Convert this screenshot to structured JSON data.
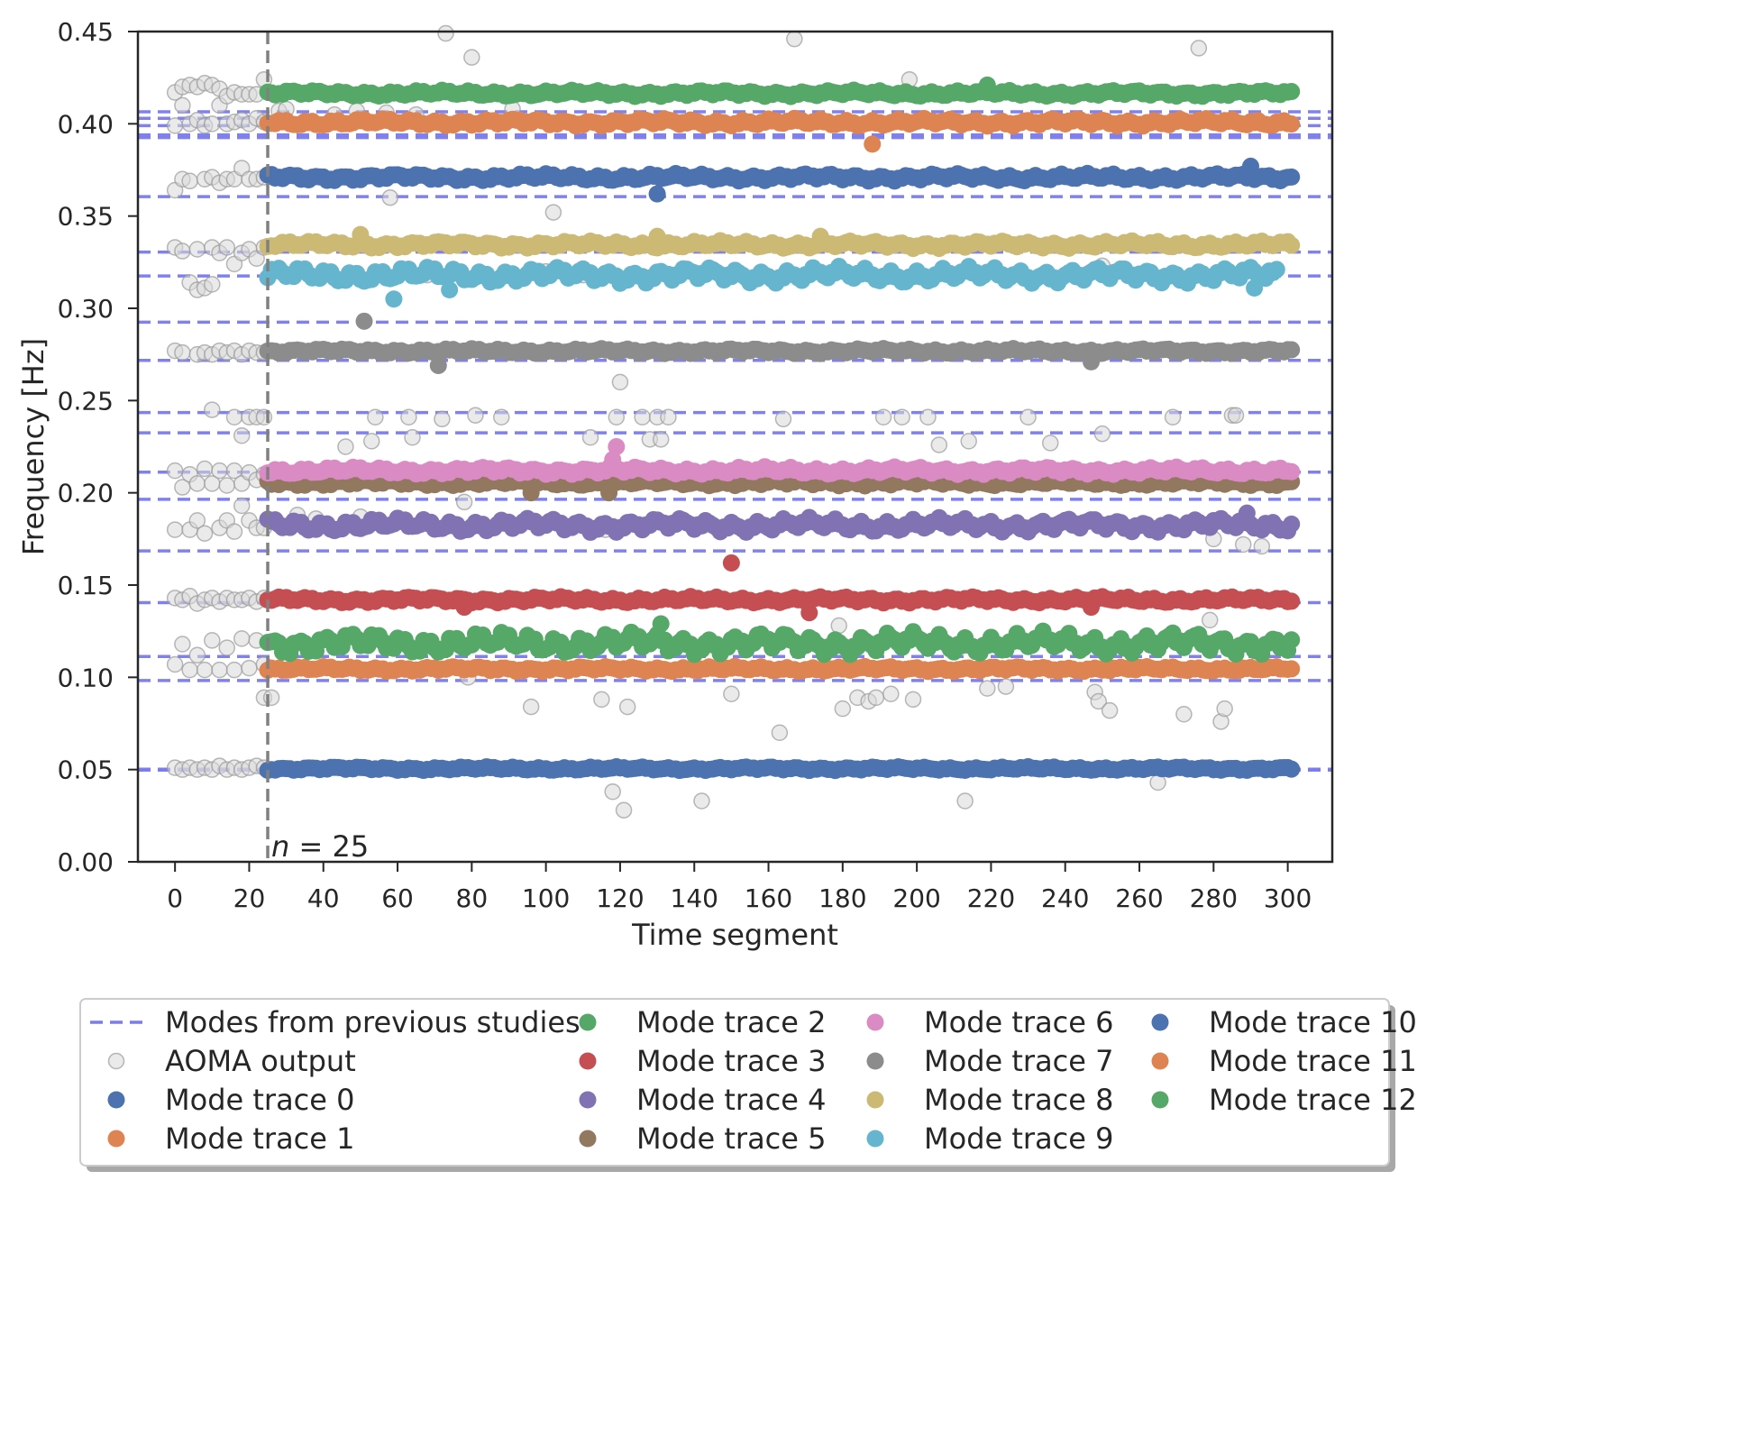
{
  "chart_data": {
    "type": "scatter",
    "title": "",
    "xlabel": "Time segment",
    "ylabel": "Frequency [Hz]",
    "xlim": [
      -10,
      312
    ],
    "ylim": [
      0.0,
      0.45
    ],
    "xticks": [
      0,
      20,
      40,
      60,
      80,
      100,
      120,
      140,
      160,
      180,
      200,
      220,
      240,
      260,
      280,
      300
    ],
    "yticks": [
      0.0,
      0.05,
      0.1,
      0.15,
      0.2,
      0.25,
      0.3,
      0.35,
      0.4,
      0.45
    ],
    "ytick_labels": [
      "0.00",
      "0.05",
      "0.10",
      "0.15",
      "0.20",
      "0.25",
      "0.30",
      "0.35",
      "0.40",
      "0.45"
    ],
    "grid": false,
    "legend_position": "below plot, 4 columns",
    "vertical_line": {
      "x": 25,
      "label": "n = 25",
      "label_italic": "n",
      "label_rest": " = 25",
      "color": "#808080"
    },
    "reference_modes": {
      "name": "Modes from previous studies",
      "color": "#7b7bee",
      "y": [
        0.0497,
        0.0502,
        0.0983,
        0.1113,
        0.1405,
        0.1685,
        0.1965,
        0.2112,
        0.2325,
        0.2435,
        0.2718,
        0.2925,
        0.3175,
        0.3305,
        0.3605,
        0.3925,
        0.394,
        0.399,
        0.403,
        0.4065
      ]
    },
    "aoma_output": {
      "name": "AOMA output",
      "color": "#c8c8c8",
      "points": [
        [
          0,
          0.051
        ],
        [
          0,
          0.107
        ],
        [
          0,
          0.143
        ],
        [
          0,
          0.18
        ],
        [
          0,
          0.212
        ],
        [
          0,
          0.277
        ],
        [
          0,
          0.333
        ],
        [
          0,
          0.364
        ],
        [
          0,
          0.399
        ],
        [
          0,
          0.417
        ],
        [
          2,
          0.05
        ],
        [
          2,
          0.118
        ],
        [
          2,
          0.142
        ],
        [
          2,
          0.203
        ],
        [
          2,
          0.276
        ],
        [
          2,
          0.331
        ],
        [
          2,
          0.37
        ],
        [
          2,
          0.41
        ],
        [
          2,
          0.42
        ],
        [
          4,
          0.051
        ],
        [
          4,
          0.104
        ],
        [
          4,
          0.144
        ],
        [
          4,
          0.18
        ],
        [
          4,
          0.21
        ],
        [
          4,
          0.314
        ],
        [
          4,
          0.369
        ],
        [
          4,
          0.4
        ],
        [
          4,
          0.421
        ],
        [
          6,
          0.05
        ],
        [
          6,
          0.112
        ],
        [
          6,
          0.14
        ],
        [
          6,
          0.185
        ],
        [
          6,
          0.205
        ],
        [
          6,
          0.275
        ],
        [
          6,
          0.332
        ],
        [
          6,
          0.31
        ],
        [
          6,
          0.402
        ],
        [
          6,
          0.42
        ],
        [
          8,
          0.051
        ],
        [
          8,
          0.104
        ],
        [
          8,
          0.142
        ],
        [
          8,
          0.178
        ],
        [
          8,
          0.213
        ],
        [
          8,
          0.276
        ],
        [
          8,
          0.311
        ],
        [
          8,
          0.37
        ],
        [
          8,
          0.399
        ],
        [
          8,
          0.422
        ],
        [
          10,
          0.05
        ],
        [
          10,
          0.12
        ],
        [
          10,
          0.143
        ],
        [
          10,
          0.205
        ],
        [
          10,
          0.245
        ],
        [
          10,
          0.275
        ],
        [
          10,
          0.333
        ],
        [
          10,
          0.313
        ],
        [
          10,
          0.371
        ],
        [
          10,
          0.4
        ],
        [
          10,
          0.421
        ],
        [
          12,
          0.052
        ],
        [
          12,
          0.104
        ],
        [
          12,
          0.141
        ],
        [
          12,
          0.181
        ],
        [
          12,
          0.212
        ],
        [
          12,
          0.277
        ],
        [
          12,
          0.33
        ],
        [
          12,
          0.368
        ],
        [
          12,
          0.41
        ],
        [
          12,
          0.419
        ],
        [
          14,
          0.05
        ],
        [
          14,
          0.116
        ],
        [
          14,
          0.143
        ],
        [
          14,
          0.185
        ],
        [
          14,
          0.204
        ],
        [
          14,
          0.276
        ],
        [
          14,
          0.333
        ],
        [
          14,
          0.37
        ],
        [
          14,
          0.4
        ],
        [
          14,
          0.415
        ],
        [
          16,
          0.051
        ],
        [
          16,
          0.104
        ],
        [
          16,
          0.142
        ],
        [
          16,
          0.179
        ],
        [
          16,
          0.212
        ],
        [
          16,
          0.241
        ],
        [
          16,
          0.277
        ],
        [
          16,
          0.324
        ],
        [
          16,
          0.37
        ],
        [
          16,
          0.401
        ],
        [
          16,
          0.417
        ],
        [
          18,
          0.05
        ],
        [
          18,
          0.121
        ],
        [
          18,
          0.142
        ],
        [
          18,
          0.193
        ],
        [
          18,
          0.205
        ],
        [
          18,
          0.231
        ],
        [
          18,
          0.275
        ],
        [
          18,
          0.33
        ],
        [
          18,
          0.376
        ],
        [
          18,
          0.402
        ],
        [
          18,
          0.416
        ],
        [
          20,
          0.051
        ],
        [
          20,
          0.105
        ],
        [
          20,
          0.143
        ],
        [
          20,
          0.185
        ],
        [
          20,
          0.211
        ],
        [
          20,
          0.241
        ],
        [
          20,
          0.277
        ],
        [
          20,
          0.332
        ],
        [
          20,
          0.37
        ],
        [
          20,
          0.4
        ],
        [
          20,
          0.416
        ],
        [
          22,
          0.052
        ],
        [
          22,
          0.12
        ],
        [
          22,
          0.141
        ],
        [
          22,
          0.181
        ],
        [
          22,
          0.207
        ],
        [
          22,
          0.241
        ],
        [
          22,
          0.276
        ],
        [
          22,
          0.327
        ],
        [
          22,
          0.37
        ],
        [
          22,
          0.403
        ],
        [
          22,
          0.416
        ],
        [
          24,
          0.051
        ],
        [
          24,
          0.089
        ],
        [
          24,
          0.107
        ],
        [
          24,
          0.143
        ],
        [
          24,
          0.181
        ],
        [
          24,
          0.21
        ],
        [
          24,
          0.241
        ],
        [
          24,
          0.276
        ],
        [
          24,
          0.333
        ],
        [
          24,
          0.371
        ],
        [
          24,
          0.401
        ],
        [
          24,
          0.424
        ],
        [
          26,
          0.089
        ],
        [
          28,
          0.407
        ],
        [
          30,
          0.408
        ],
        [
          33,
          0.188
        ],
        [
          38,
          0.186
        ],
        [
          43,
          0.405
        ],
        [
          46,
          0.225
        ],
        [
          49,
          0.407
        ],
        [
          50,
          0.187
        ],
        [
          53,
          0.228
        ],
        [
          54,
          0.241
        ],
        [
          57,
          0.406
        ],
        [
          58,
          0.36
        ],
        [
          63,
          0.241
        ],
        [
          64,
          0.23
        ],
        [
          65,
          0.405
        ],
        [
          68,
          0.318
        ],
        [
          72,
          0.24
        ],
        [
          73,
          0.449
        ],
        [
          78,
          0.195
        ],
        [
          79,
          0.1
        ],
        [
          80,
          0.436
        ],
        [
          81,
          0.242
        ],
        [
          88,
          0.241
        ],
        [
          91,
          0.408
        ],
        [
          96,
          0.084
        ],
        [
          100,
          0.32
        ],
        [
          102,
          0.352
        ],
        [
          110,
          0.318
        ],
        [
          112,
          0.23
        ],
        [
          115,
          0.088
        ],
        [
          116,
          0.18
        ],
        [
          118,
          0.038
        ],
        [
          119,
          0.241
        ],
        [
          120,
          0.26
        ],
        [
          121,
          0.028
        ],
        [
          122,
          0.084
        ],
        [
          126,
          0.241
        ],
        [
          128,
          0.229
        ],
        [
          130,
          0.241
        ],
        [
          131,
          0.229
        ],
        [
          133,
          0.241
        ],
        [
          142,
          0.033
        ],
        [
          150,
          0.091
        ],
        [
          163,
          0.07
        ],
        [
          164,
          0.24
        ],
        [
          167,
          0.446
        ],
        [
          180,
          0.083
        ],
        [
          179,
          0.128
        ],
        [
          184,
          0.089
        ],
        [
          187,
          0.087
        ],
        [
          189,
          0.089
        ],
        [
          191,
          0.241
        ],
        [
          193,
          0.091
        ],
        [
          196,
          0.241
        ],
        [
          198,
          0.424
        ],
        [
          199,
          0.088
        ],
        [
          203,
          0.241
        ],
        [
          206,
          0.226
        ],
        [
          207,
          0.12
        ],
        [
          213,
          0.033
        ],
        [
          214,
          0.228
        ],
        [
          219,
          0.094
        ],
        [
          224,
          0.095
        ],
        [
          230,
          0.241
        ],
        [
          236,
          0.227
        ],
        [
          248,
          0.092
        ],
        [
          249,
          0.087
        ],
        [
          252,
          0.082
        ],
        [
          265,
          0.043
        ],
        [
          269,
          0.241
        ],
        [
          272,
          0.08
        ],
        [
          276,
          0.441
        ],
        [
          280,
          0.175
        ],
        [
          282,
          0.076
        ],
        [
          283,
          0.083
        ],
        [
          285,
          0.242
        ],
        [
          286,
          0.242
        ],
        [
          288,
          0.172
        ],
        [
          279,
          0.131
        ],
        [
          250,
          0.232
        ],
        [
          250,
          0.323
        ],
        [
          293,
          0.171
        ]
      ]
    },
    "series": [
      {
        "name": "Mode trace 0",
        "color": "#4c72b0",
        "start": 25,
        "end": 301,
        "base": 0.0505,
        "amp": 0.0009,
        "outliers": []
      },
      {
        "name": "Mode trace 1",
        "color": "#dd8452",
        "start": 25,
        "end": 301,
        "base": 0.1045,
        "amp": 0.0012,
        "outliers": []
      },
      {
        "name": "Mode trace 2",
        "color": "#55a868",
        "start": 25,
        "end": 301,
        "base": 0.4165,
        "amp": 0.0015,
        "outliers": [
          [
            219,
            0.421
          ]
        ]
      },
      {
        "name": "Mode trace 3",
        "color": "#c44e52",
        "start": 25,
        "end": 301,
        "base": 0.142,
        "amp": 0.0015,
        "outliers": [
          [
            150,
            0.162
          ],
          [
            171,
            0.135
          ],
          [
            247,
            0.138
          ],
          [
            78,
            0.138
          ]
        ]
      },
      {
        "name": "Mode trace 4",
        "color": "#8172b3",
        "start": 25,
        "end": 301,
        "base": 0.1825,
        "amp": 0.0035,
        "outliers": [
          [
            289,
            0.189
          ]
        ]
      },
      {
        "name": "Mode trace 5",
        "color": "#937860",
        "start": 25,
        "end": 301,
        "base": 0.2055,
        "amp": 0.0015,
        "outliers": [
          [
            96,
            0.2
          ],
          [
            117,
            0.2
          ]
        ]
      },
      {
        "name": "Mode trace 6",
        "color": "#da8bc3",
        "start": 25,
        "end": 301,
        "base": 0.212,
        "amp": 0.0018,
        "outliers": [
          [
            119,
            0.225
          ],
          [
            118,
            0.218
          ]
        ]
      },
      {
        "name": "Mode trace 7",
        "color": "#8c8c8c",
        "start": 25,
        "end": 301,
        "base": 0.2768,
        "amp": 0.0012,
        "outliers": [
          [
            51,
            0.293
          ],
          [
            71,
            0.269
          ],
          [
            247,
            0.271
          ]
        ]
      },
      {
        "name": "Mode trace 8",
        "color": "#ccb974",
        "start": 25,
        "end": 301,
        "base": 0.3345,
        "amp": 0.0018,
        "outliers": [
          [
            50,
            0.34
          ],
          [
            130,
            0.339
          ],
          [
            174,
            0.339
          ]
        ]
      },
      {
        "name": "Mode trace 9",
        "color": "#64b5cd",
        "start": 25,
        "end": 297,
        "base": 0.318,
        "amp": 0.004,
        "outliers": [
          [
            59,
            0.305
          ],
          [
            74,
            0.31
          ],
          [
            291,
            0.311
          ]
        ]
      },
      {
        "name": "Mode trace 10",
        "color": "#4c72b0",
        "start": 25,
        "end": 301,
        "base": 0.371,
        "amp": 0.0018,
        "outliers": [
          [
            130,
            0.362
          ],
          [
            290,
            0.377
          ]
        ]
      },
      {
        "name": "Mode trace 11",
        "color": "#dd8452",
        "start": 25,
        "end": 301,
        "base": 0.4008,
        "amp": 0.0018,
        "outliers": [
          [
            188,
            0.389
          ]
        ]
      },
      {
        "name": "Mode trace 12",
        "color": "#55a868",
        "start": 25,
        "end": 301,
        "base": 0.1185,
        "amp": 0.0055,
        "outliers": [
          [
            131,
            0.129
          ]
        ]
      }
    ],
    "legend": [
      {
        "label": "Modes from previous studies",
        "kind": "dash",
        "color": "#7b7bee"
      },
      {
        "label": "AOMA output",
        "kind": "ghost",
        "color": "#c8c8c8"
      },
      {
        "label": "Mode trace 0",
        "kind": "dot",
        "color": "#4c72b0"
      },
      {
        "label": "Mode trace 1",
        "kind": "dot",
        "color": "#dd8452"
      },
      {
        "label": "Mode trace 2",
        "kind": "dot",
        "color": "#55a868"
      },
      {
        "label": "Mode trace 3",
        "kind": "dot",
        "color": "#c44e52"
      },
      {
        "label": "Mode trace 4",
        "kind": "dot",
        "color": "#8172b3"
      },
      {
        "label": "Mode trace 5",
        "kind": "dot",
        "color": "#937860"
      },
      {
        "label": "Mode trace 6",
        "kind": "dot",
        "color": "#da8bc3"
      },
      {
        "label": "Mode trace 7",
        "kind": "dot",
        "color": "#8c8c8c"
      },
      {
        "label": "Mode trace 8",
        "kind": "dot",
        "color": "#ccb974"
      },
      {
        "label": "Mode trace 9",
        "kind": "dot",
        "color": "#64b5cd"
      },
      {
        "label": "Mode trace 10",
        "kind": "dot",
        "color": "#4c72b0"
      },
      {
        "label": "Mode trace 11",
        "kind": "dot",
        "color": "#dd8452"
      },
      {
        "label": "Mode trace 12",
        "kind": "dot",
        "color": "#55a868"
      }
    ]
  }
}
